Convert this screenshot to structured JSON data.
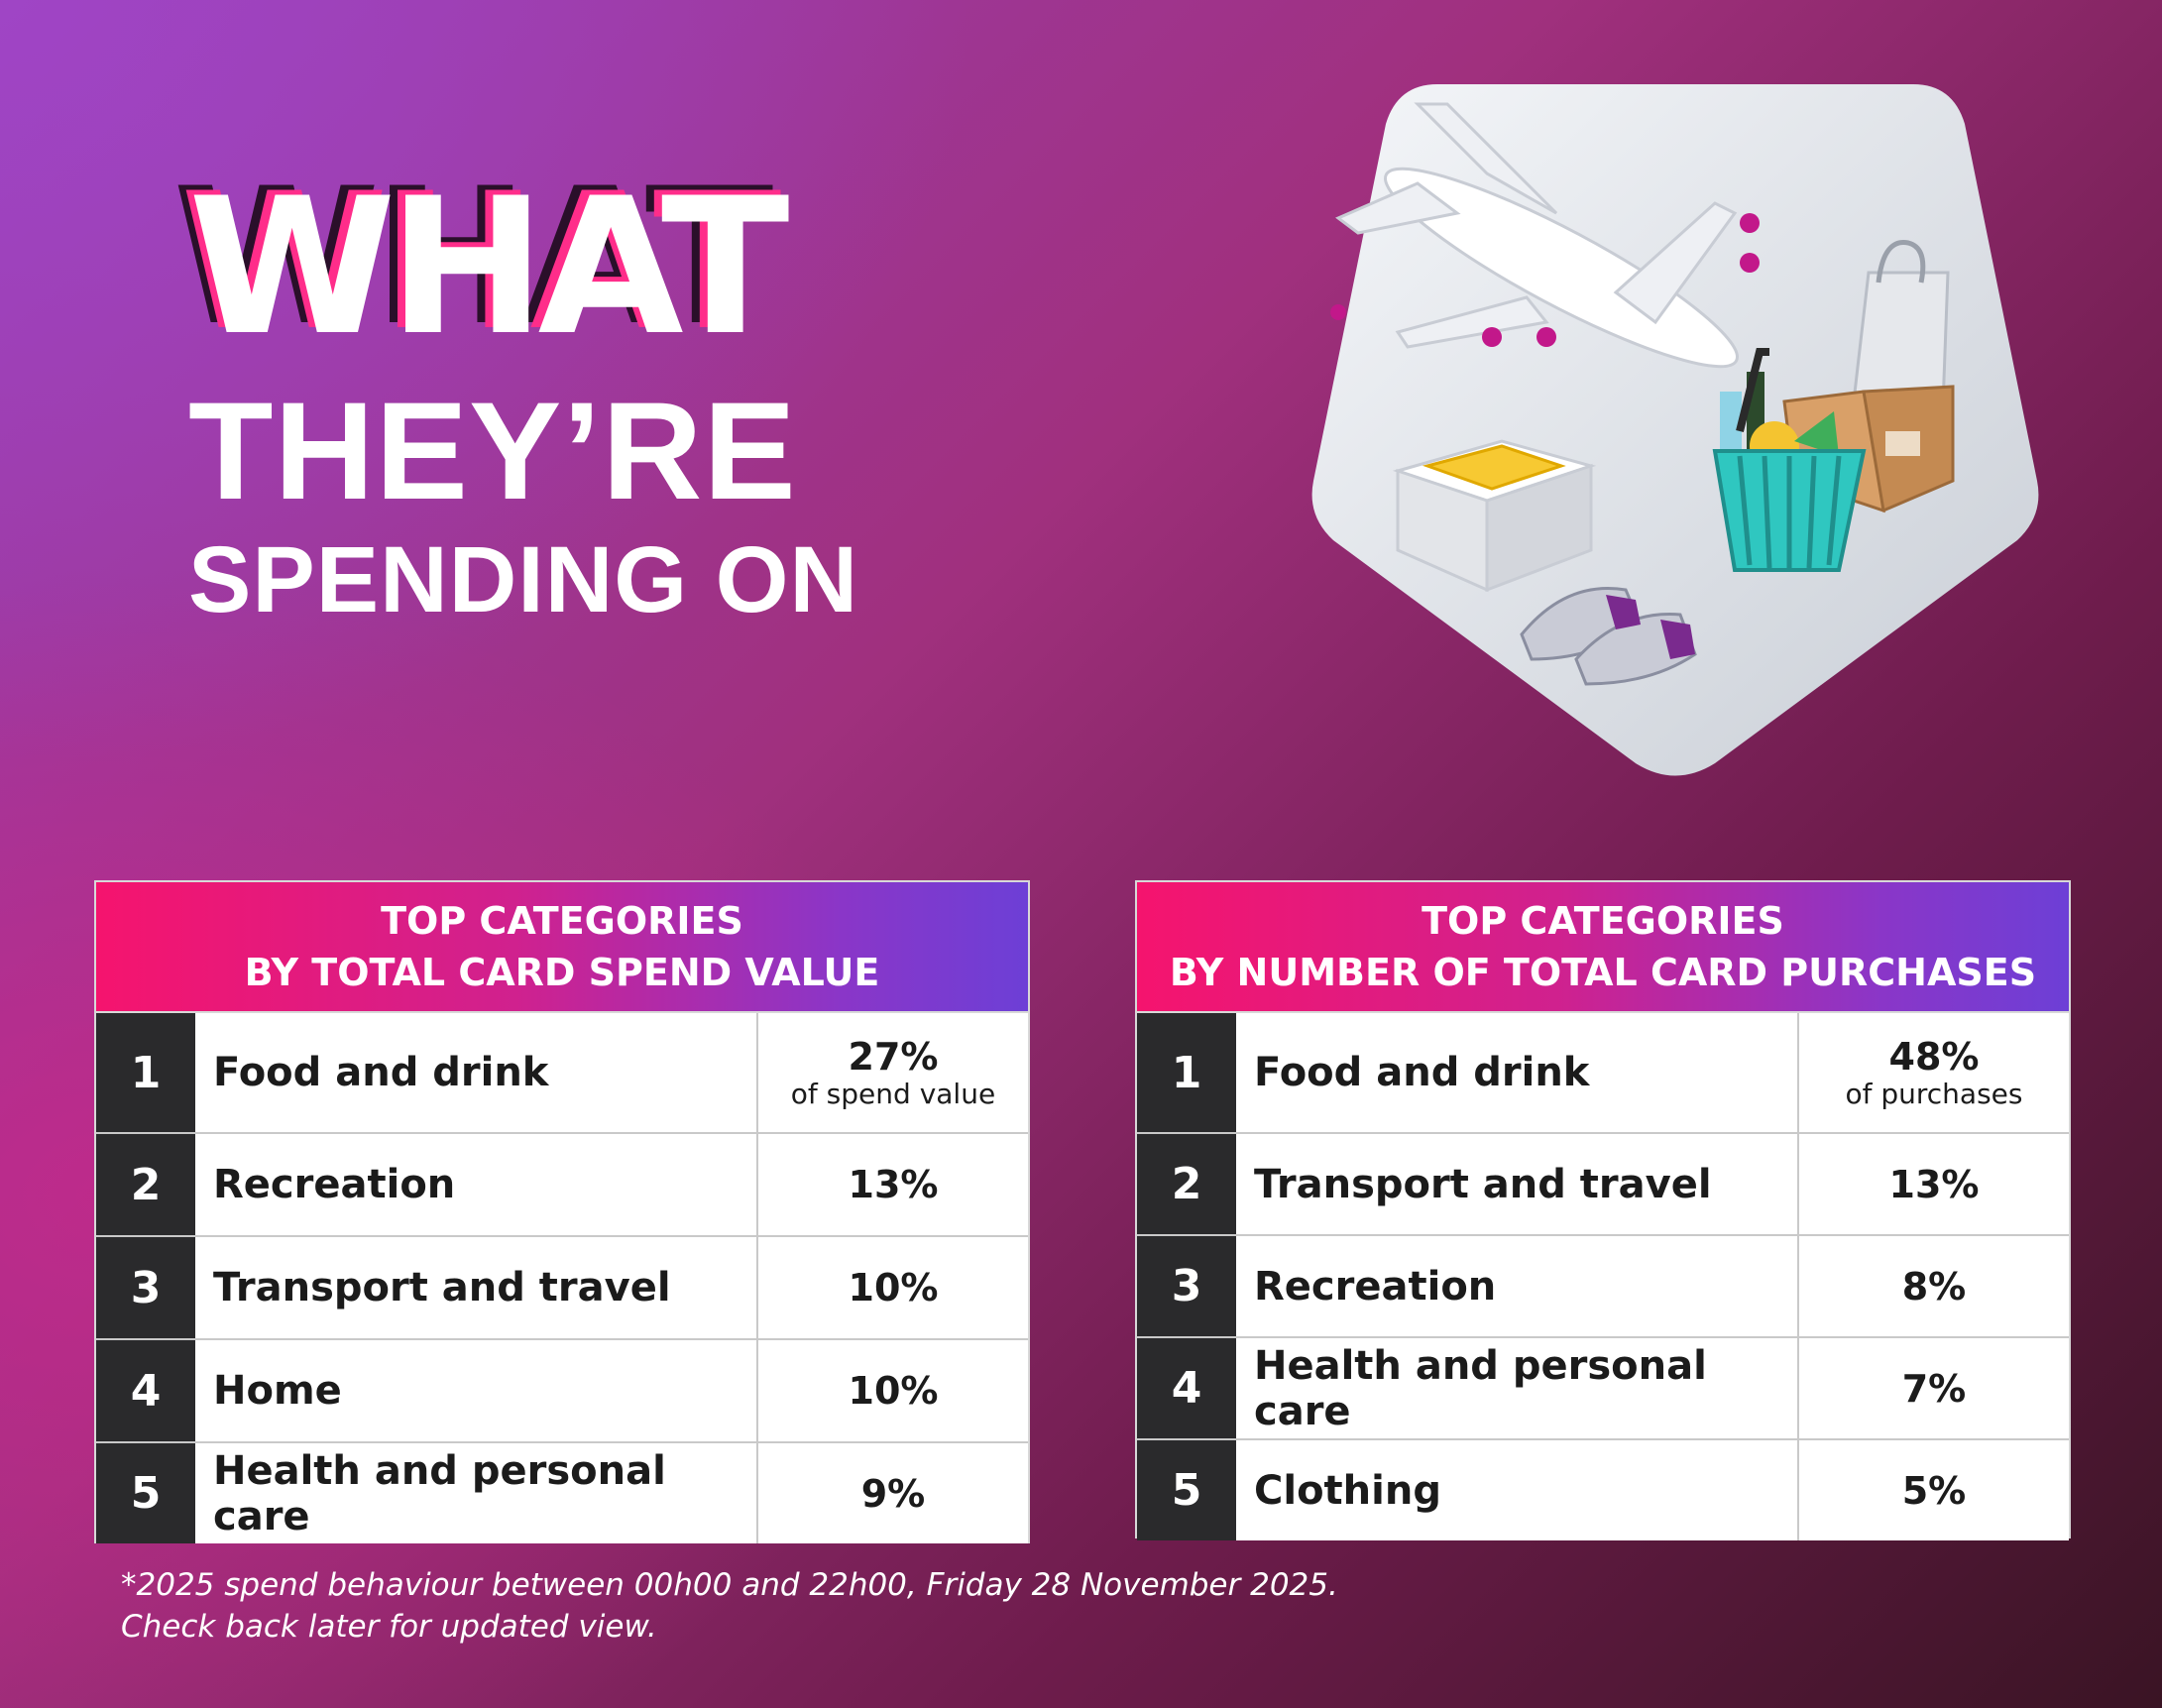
{
  "headline": {
    "line1": "WHAT",
    "line2": "THEY’RE",
    "line3": "SPENDING ON"
  },
  "illustration": {
    "icons": [
      "airplane-icon",
      "shopping-bag-icon",
      "cardboard-box-icon",
      "grocery-basket-icon",
      "folded-shirt-box-icon",
      "sneakers-icon"
    ]
  },
  "table_spend": {
    "header_line1": "TOP CATEGORIES",
    "header_line2": "BY TOTAL CARD SPEND VALUE",
    "rows": [
      {
        "rank": "1",
        "category": "Food and drink",
        "value": "27%",
        "sub": "of spend value"
      },
      {
        "rank": "2",
        "category": "Recreation",
        "value": "13%",
        "sub": ""
      },
      {
        "rank": "3",
        "category": "Transport and travel",
        "value": "10%",
        "sub": ""
      },
      {
        "rank": "4",
        "category": "Home",
        "value": "10%",
        "sub": ""
      },
      {
        "rank": "5",
        "category": "Health and personal care",
        "value": "9%",
        "sub": ""
      }
    ]
  },
  "table_purchases": {
    "header_line1": "TOP CATEGORIES",
    "header_line2": "BY NUMBER OF TOTAL CARD PURCHASES",
    "rows": [
      {
        "rank": "1",
        "category": "Food and drink",
        "value": "48%",
        "sub": "of purchases"
      },
      {
        "rank": "2",
        "category": "Transport and travel",
        "value": "13%",
        "sub": ""
      },
      {
        "rank": "3",
        "category": "Recreation",
        "value": "8%",
        "sub": ""
      },
      {
        "rank": "4",
        "category": "Health and personal care",
        "value": "7%",
        "sub": ""
      },
      {
        "rank": "5",
        "category": "Clothing",
        "value": "5%",
        "sub": ""
      }
    ]
  },
  "footnote": {
    "line1": "*2025 spend behaviour between 00h00 and 22h00, Friday 28 November 2025.",
    "line2": "Check back later for updated view."
  },
  "colors": {
    "header_gradient_start": "#f5146e",
    "header_gradient_end": "#6d3fd6",
    "rank_cell": "#2a2a2c",
    "headline_accent": "#ff2d8a"
  }
}
